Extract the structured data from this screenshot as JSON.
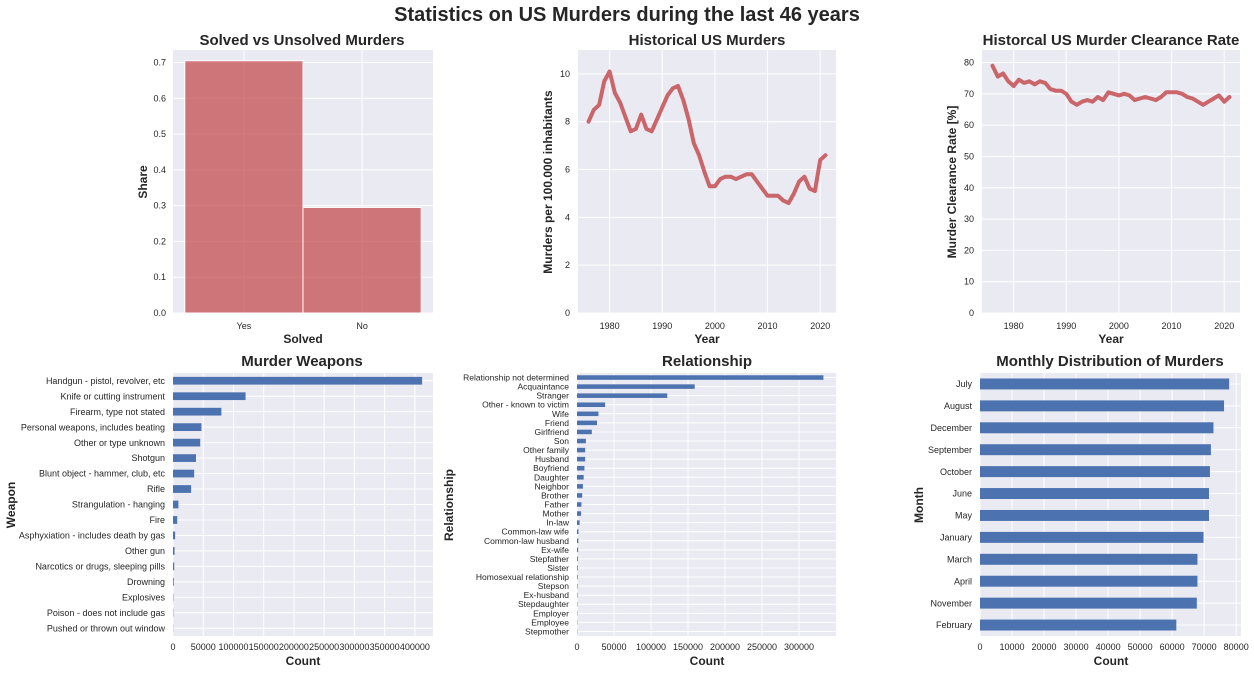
{
  "suptitle": "Statistics on US Murders during the last 46 years",
  "colors": {
    "panel_bg": "#EAEAF2",
    "grid": "#FFFFFF",
    "red": "#C44E52",
    "blue": "#4C72B0",
    "text": "#262626"
  },
  "chart_data": [
    {
      "id": "solved",
      "type": "bar",
      "title": "Solved vs Unsolved Murders",
      "xlabel": "Solved",
      "ylabel": "Share",
      "categories": [
        "Yes",
        "No"
      ],
      "values": [
        0.705,
        0.295
      ],
      "ylim": [
        0,
        0.735
      ],
      "yticks": [
        0.0,
        0.1,
        0.2,
        0.3,
        0.4,
        0.5,
        0.6,
        0.7
      ],
      "ytick_labels": [
        "0.0",
        "0.1",
        "0.2",
        "0.3",
        "0.4",
        "0.5",
        "0.6",
        "0.7"
      ],
      "grid": true
    },
    {
      "id": "murders",
      "type": "line",
      "title": "Historical US Murders",
      "xlabel": "Year",
      "ylabel": "Murders per 100.000 inhabitants",
      "x": [
        1976,
        1977,
        1978,
        1979,
        1980,
        1981,
        1982,
        1983,
        1984,
        1985,
        1986,
        1987,
        1988,
        1989,
        1990,
        1991,
        1992,
        1993,
        1994,
        1995,
        1996,
        1997,
        1998,
        1999,
        2000,
        2001,
        2002,
        2003,
        2004,
        2005,
        2006,
        2007,
        2008,
        2009,
        2010,
        2011,
        2012,
        2013,
        2014,
        2015,
        2016,
        2017,
        2018,
        2019,
        2020,
        2021
      ],
      "y": [
        8.0,
        8.5,
        8.7,
        9.7,
        10.1,
        9.2,
        8.8,
        8.2,
        7.6,
        7.7,
        8.3,
        7.7,
        7.6,
        8.1,
        8.6,
        9.1,
        9.4,
        9.5,
        8.9,
        8.1,
        7.1,
        6.6,
        5.9,
        5.3,
        5.3,
        5.6,
        5.7,
        5.7,
        5.6,
        5.7,
        5.8,
        5.8,
        5.5,
        5.2,
        4.9,
        4.9,
        4.9,
        4.7,
        4.6,
        5.0,
        5.5,
        5.7,
        5.2,
        5.1,
        6.4,
        6.6
      ],
      "xlim": [
        1974,
        2023
      ],
      "ylim": [
        0,
        11
      ],
      "xticks": [
        1980,
        1990,
        2000,
        2010,
        2020
      ],
      "xtick_labels": [
        "1980",
        "1990",
        "2000",
        "2010",
        "2020"
      ],
      "yticks": [
        0,
        2,
        4,
        6,
        8,
        10
      ],
      "ytick_labels": [
        "0",
        "2",
        "4",
        "6",
        "8",
        "10"
      ],
      "grid": true
    },
    {
      "id": "clearance",
      "type": "line",
      "title": "Historcal US Murder Clearance Rate",
      "xlabel": "Year",
      "ylabel": "Murder Clearance Rate [%]",
      "x": [
        1976,
        1977,
        1978,
        1979,
        1980,
        1981,
        1982,
        1983,
        1984,
        1985,
        1986,
        1987,
        1988,
        1989,
        1990,
        1991,
        1992,
        1993,
        1994,
        1995,
        1996,
        1997,
        1998,
        1999,
        2000,
        2001,
        2002,
        2003,
        2004,
        2005,
        2006,
        2007,
        2008,
        2009,
        2010,
        2011,
        2012,
        2013,
        2014,
        2015,
        2016,
        2017,
        2018,
        2019,
        2020,
        2021
      ],
      "y": [
        79,
        75.5,
        76.5,
        74,
        72.5,
        74.5,
        73.5,
        74,
        73,
        74,
        73.5,
        71.5,
        71,
        71,
        70,
        67.5,
        66.5,
        67.5,
        68,
        67.5,
        69,
        68,
        70.5,
        70,
        69.5,
        70,
        69.5,
        68,
        68.5,
        69,
        68.5,
        68,
        69,
        70.5,
        70.5,
        70.5,
        70,
        69,
        68.5,
        67.5,
        66.5,
        67.5,
        68.5,
        69.5,
        67.5,
        69
      ],
      "xlim": [
        1974,
        2023
      ],
      "ylim": [
        0,
        84
      ],
      "xticks": [
        1980,
        1990,
        2000,
        2010,
        2020
      ],
      "xtick_labels": [
        "1980",
        "1990",
        "2000",
        "2010",
        "2020"
      ],
      "yticks": [
        0,
        10,
        20,
        30,
        40,
        50,
        60,
        70,
        80
      ],
      "ytick_labels": [
        "0",
        "10",
        "20",
        "30",
        "40",
        "50",
        "60",
        "70",
        "80"
      ],
      "grid": true
    },
    {
      "id": "weapons",
      "type": "bar",
      "orientation": "horizontal",
      "title": "Murder Weapons",
      "xlabel": "Count",
      "ylabel": "Weapon",
      "categories": [
        "Handgun - pistol, revolver, etc",
        "Knife or cutting instrument",
        "Firearm, type not stated",
        "Personal weapons, includes beating",
        "Other or type unknown",
        "Shotgun",
        "Blunt object - hammer, club, etc",
        "Rifle",
        "Strangulation - hanging",
        "Fire",
        "Asphyxiation - includes death by gas",
        "Other gun",
        "Narcotics or drugs, sleeping pills",
        "Drowning",
        "Explosives",
        "Poison - does not include gas",
        "Pushed or thrown out window"
      ],
      "values": [
        412000,
        120000,
        80000,
        47000,
        45000,
        38000,
        35000,
        30000,
        9000,
        7000,
        3500,
        2500,
        2000,
        1200,
        500,
        500,
        300
      ],
      "xlim": [
        0,
        430000
      ],
      "xticks": [
        0,
        50000,
        100000,
        150000,
        200000,
        250000,
        300000,
        350000,
        400000
      ],
      "xtick_labels": [
        "0",
        "50000",
        "100000",
        "150000",
        "200000",
        "250000",
        "300000",
        "350000",
        "400000"
      ],
      "grid": true
    },
    {
      "id": "relationship",
      "type": "bar",
      "orientation": "horizontal",
      "title": "Relationship",
      "xlabel": "Count",
      "ylabel": "Relationship",
      "categories": [
        "Relationship not determined",
        "Acquaintance",
        "Stranger",
        "Other - known to victim",
        "Wife",
        "Friend",
        "Girlfriend",
        "Son",
        "Other family",
        "Husband",
        "Boyfriend",
        "Daughter",
        "Neighbor",
        "Brother",
        "Father",
        "Mother",
        "In-law",
        "Common-law wife",
        "Common-law husband",
        "Ex-wife",
        "Stepfather",
        "Sister",
        "Homosexual relationship",
        "Stepson",
        "Ex-husband",
        "Stepdaughter",
        "Employer",
        "Employee",
        "Stepmother"
      ],
      "values": [
        333000,
        159000,
        122000,
        38000,
        29000,
        27000,
        20000,
        12000,
        11000,
        11000,
        10000,
        9000,
        8000,
        7000,
        6000,
        5500,
        3500,
        2000,
        1800,
        1500,
        1200,
        1000,
        900,
        700,
        600,
        500,
        400,
        400,
        300
      ],
      "xlim": [
        0,
        350000
      ],
      "xticks": [
        0,
        50000,
        100000,
        150000,
        200000,
        250000,
        300000
      ],
      "xtick_labels": [
        "0",
        "50000",
        "100000",
        "150000",
        "200000",
        "250000",
        "300000"
      ],
      "grid": true
    },
    {
      "id": "monthly",
      "type": "bar",
      "orientation": "horizontal",
      "title": "Monthly Distribution of Murders",
      "xlabel": "Count",
      "ylabel": "Month",
      "categories": [
        "July",
        "August",
        "December",
        "September",
        "October",
        "June",
        "May",
        "January",
        "March",
        "April",
        "November",
        "February"
      ],
      "values": [
        77800,
        76200,
        72900,
        72100,
        71800,
        71500,
        71500,
        69800,
        67900,
        67900,
        67700,
        61300
      ],
      "xlim": [
        0,
        81500
      ],
      "xticks": [
        0,
        10000,
        20000,
        30000,
        40000,
        50000,
        60000,
        70000,
        80000
      ],
      "xtick_labels": [
        "0",
        "10000",
        "20000",
        "30000",
        "40000",
        "50000",
        "60000",
        "70000",
        "80000"
      ],
      "grid": true
    }
  ]
}
